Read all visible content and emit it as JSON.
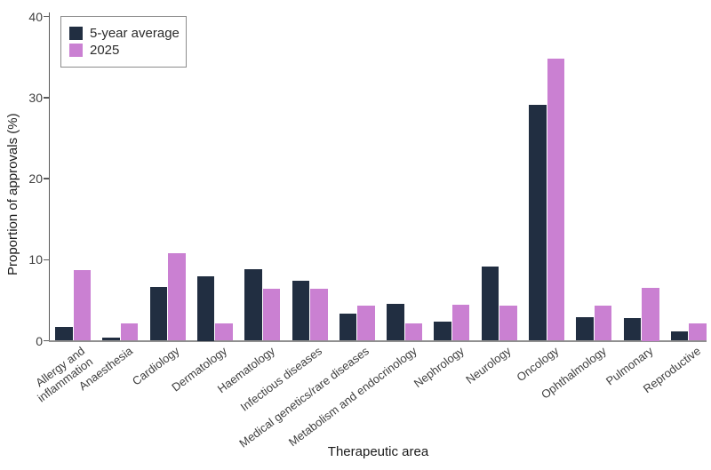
{
  "chart_data": {
    "type": "bar",
    "title": "",
    "xlabel": "Therapeutic area",
    "ylabel": "Proportion of approvals (%)",
    "ylim": [
      0,
      40
    ],
    "yticks": [
      0,
      10,
      20,
      30,
      40
    ],
    "grid": false,
    "legend_position": "top-left-inside",
    "categories": [
      "Allergy and\ninflammation",
      "Anaesthesia",
      "Cardiology",
      "Dermatology",
      "Haematology",
      "Infectious diseases",
      "Medical genetics/rare diseases",
      "Metabolism and endocrinology",
      "Nephrology",
      "Neurology",
      "Oncology",
      "Ophthalmology",
      "Pulmonary",
      "Reproductive"
    ],
    "series": [
      {
        "name": "5-year average",
        "color": "#212e41",
        "values": [
          1.7,
          0.4,
          6.6,
          8.0,
          8.8,
          7.4,
          3.3,
          4.6,
          2.4,
          9.1,
          29.1,
          2.9,
          2.8,
          1.1
        ]
      },
      {
        "name": "2025",
        "color": "#ca80d2",
        "values": [
          8.7,
          2.1,
          10.8,
          2.1,
          6.4,
          6.4,
          4.3,
          2.1,
          4.4,
          4.3,
          34.8,
          4.3,
          6.5,
          2.1
        ]
      }
    ]
  },
  "colors": {
    "y_axis": "#5a5a5a",
    "x_axis": "#909090",
    "tick_text": "#3f3f3f",
    "axis_title_text": "#1a1a1a",
    "legend_border": "#8c8c8c",
    "background": "#ffffff"
  }
}
